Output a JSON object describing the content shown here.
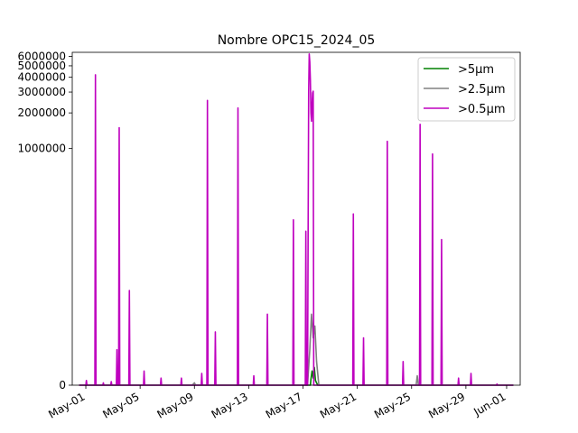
{
  "chart_data": {
    "type": "line",
    "title": "Nombre OPC15_2024_05",
    "xlabel": "",
    "ylabel": "",
    "yscale": "symlog",
    "ylim": [
      0,
      6500000
    ],
    "xlim": [
      "2024-04-30",
      "2024-06-02"
    ],
    "x_ticks": [
      "May-01",
      "May-05",
      "May-09",
      "May-13",
      "May-17",
      "May-21",
      "May-25",
      "May-29",
      "Jun-01"
    ],
    "y_ticks": [
      "0",
      "1000000",
      "2000000",
      "3000000",
      "4000000",
      "5000000",
      "6000000"
    ],
    "y_tick_values": [
      0,
      1000000,
      2000000,
      3000000,
      4000000,
      5000000,
      6000000
    ],
    "grid": false,
    "legend_position": "top-right",
    "series": [
      {
        "name": ">5µm",
        "color": "#008000",
        "points": [
          [
            "2024-04-30 12:00",
            0
          ],
          [
            "2024-05-17 13:00",
            0
          ],
          [
            "2024-05-17 14:00",
            5000
          ],
          [
            "2024-05-17 16:00",
            12000
          ],
          [
            "2024-05-17 18:00",
            6000
          ],
          [
            "2024-05-17 20:00",
            15000
          ],
          [
            "2024-05-17 22:00",
            4000
          ],
          [
            "2024-05-18 02:00",
            0
          ],
          [
            "2024-06-01 12:00",
            0
          ]
        ]
      },
      {
        "name": ">2.5µm",
        "color": "#808080",
        "points": [
          [
            "2024-04-30 12:00",
            0
          ],
          [
            "2024-05-08 20:00",
            0
          ],
          [
            "2024-05-09 00:00",
            2000
          ],
          [
            "2024-05-09 02:00",
            0
          ],
          [
            "2024-05-17 08:00",
            0
          ],
          [
            "2024-05-17 12:00",
            30000
          ],
          [
            "2024-05-17 15:00",
            60000
          ],
          [
            "2024-05-17 18:00",
            40000
          ],
          [
            "2024-05-17 21:00",
            50000
          ],
          [
            "2024-05-18 00:00",
            20000
          ],
          [
            "2024-05-18 04:00",
            0
          ],
          [
            "2024-05-25 08:00",
            0
          ],
          [
            "2024-05-25 10:00",
            8000
          ],
          [
            "2024-05-25 12:00",
            0
          ],
          [
            "2024-06-01 12:00",
            0
          ]
        ]
      },
      {
        "name": ">0.5µm",
        "color": "#bf00bf",
        "points": [
          [
            "2024-04-30 12:00",
            0
          ],
          [
            "2024-05-01 00:00",
            0
          ],
          [
            "2024-05-01 01:00",
            4000
          ],
          [
            "2024-05-01 02:00",
            0
          ],
          [
            "2024-05-01 16:00",
            0
          ],
          [
            "2024-05-01 17:00",
            4200000
          ],
          [
            "2024-05-01 18:00",
            0
          ],
          [
            "2024-05-02 06:00",
            0
          ],
          [
            "2024-05-02 07:00",
            2000
          ],
          [
            "2024-05-02 08:00",
            0
          ],
          [
            "2024-05-02 20:00",
            0
          ],
          [
            "2024-05-02 21:00",
            3000
          ],
          [
            "2024-05-02 22:00",
            0
          ],
          [
            "2024-05-03 06:00",
            0
          ],
          [
            "2024-05-03 07:00",
            30000
          ],
          [
            "2024-05-03 08:00",
            0
          ],
          [
            "2024-05-03 10:00",
            0
          ],
          [
            "2024-05-03 11:00",
            1500000
          ],
          [
            "2024-05-03 12:00",
            0
          ],
          [
            "2024-05-04 04:00",
            0
          ],
          [
            "2024-05-04 05:00",
            80000
          ],
          [
            "2024-05-04 06:00",
            0
          ],
          [
            "2024-05-05 06:00",
            0
          ],
          [
            "2024-05-05 07:00",
            12000
          ],
          [
            "2024-05-05 08:00",
            0
          ],
          [
            "2024-05-06 12:00",
            0
          ],
          [
            "2024-05-06 13:00",
            6000
          ],
          [
            "2024-05-06 14:00",
            0
          ],
          [
            "2024-05-08 00:00",
            0
          ],
          [
            "2024-05-08 01:00",
            6000
          ],
          [
            "2024-05-08 02:00",
            0
          ],
          [
            "2024-05-09 12:00",
            0
          ],
          [
            "2024-05-09 13:00",
            10000
          ],
          [
            "2024-05-09 14:00",
            0
          ],
          [
            "2024-05-09 22:00",
            0
          ],
          [
            "2024-05-09 23:00",
            2550000
          ],
          [
            "2024-05-10 00:00",
            0
          ],
          [
            "2024-05-10 12:00",
            0
          ],
          [
            "2024-05-10 13:00",
            45000
          ],
          [
            "2024-05-10 14:00",
            0
          ],
          [
            "2024-05-12 04:00",
            0
          ],
          [
            "2024-05-12 05:00",
            2200000
          ],
          [
            "2024-05-12 06:00",
            0
          ],
          [
            "2024-05-13 08:00",
            0
          ],
          [
            "2024-05-13 09:00",
            8000
          ],
          [
            "2024-05-13 10:00",
            0
          ],
          [
            "2024-05-14 08:00",
            0
          ],
          [
            "2024-05-14 09:00",
            60000
          ],
          [
            "2024-05-14 10:00",
            0
          ],
          [
            "2024-05-16 06:00",
            0
          ],
          [
            "2024-05-16 07:00",
            250000
          ],
          [
            "2024-05-16 08:00",
            0
          ],
          [
            "2024-05-17 04:00",
            0
          ],
          [
            "2024-05-17 05:00",
            200000
          ],
          [
            "2024-05-17 06:00",
            0
          ],
          [
            "2024-05-17 08:00",
            0
          ],
          [
            "2024-05-17 10:00",
            3000000
          ],
          [
            "2024-05-17 11:00",
            6300000
          ],
          [
            "2024-05-17 12:00",
            5400000
          ],
          [
            "2024-05-17 13:00",
            3800000
          ],
          [
            "2024-05-17 14:00",
            2000000
          ],
          [
            "2024-05-17 15:00",
            1700000
          ],
          [
            "2024-05-17 16:00",
            2300000
          ],
          [
            "2024-05-17 17:00",
            2950000
          ],
          [
            "2024-05-17 18:00",
            3050000
          ],
          [
            "2024-05-17 19:00",
            0
          ],
          [
            "2024-05-20 16:00",
            0
          ],
          [
            "2024-05-20 17:00",
            280000
          ],
          [
            "2024-05-20 18:00",
            0
          ],
          [
            "2024-05-21 10:00",
            0
          ],
          [
            "2024-05-21 11:00",
            40000
          ],
          [
            "2024-05-21 12:00",
            0
          ],
          [
            "2024-05-23 04:00",
            0
          ],
          [
            "2024-05-23 05:00",
            1150000
          ],
          [
            "2024-05-23 06:00",
            0
          ],
          [
            "2024-05-24 08:00",
            0
          ],
          [
            "2024-05-24 09:00",
            20000
          ],
          [
            "2024-05-24 10:00",
            0
          ],
          [
            "2024-05-25 14:00",
            0
          ],
          [
            "2024-05-25 15:00",
            1600000
          ],
          [
            "2024-05-25 16:00",
            0
          ],
          [
            "2024-05-26 12:00",
            0
          ],
          [
            "2024-05-26 13:00",
            900000
          ],
          [
            "2024-05-26 14:00",
            0
          ],
          [
            "2024-05-27 04:00",
            0
          ],
          [
            "2024-05-27 05:00",
            170000
          ],
          [
            "2024-05-27 06:00",
            0
          ],
          [
            "2024-05-28 10:00",
            0
          ],
          [
            "2024-05-28 11:00",
            6000
          ],
          [
            "2024-05-28 12:00",
            0
          ],
          [
            "2024-05-29 08:00",
            0
          ],
          [
            "2024-05-29 09:00",
            10000
          ],
          [
            "2024-05-29 10:00",
            0
          ],
          [
            "2024-05-31 06:00",
            0
          ],
          [
            "2024-05-31 07:00",
            1000
          ],
          [
            "2024-05-31 08:00",
            0
          ],
          [
            "2024-06-01 12:00",
            0
          ]
        ]
      }
    ]
  }
}
